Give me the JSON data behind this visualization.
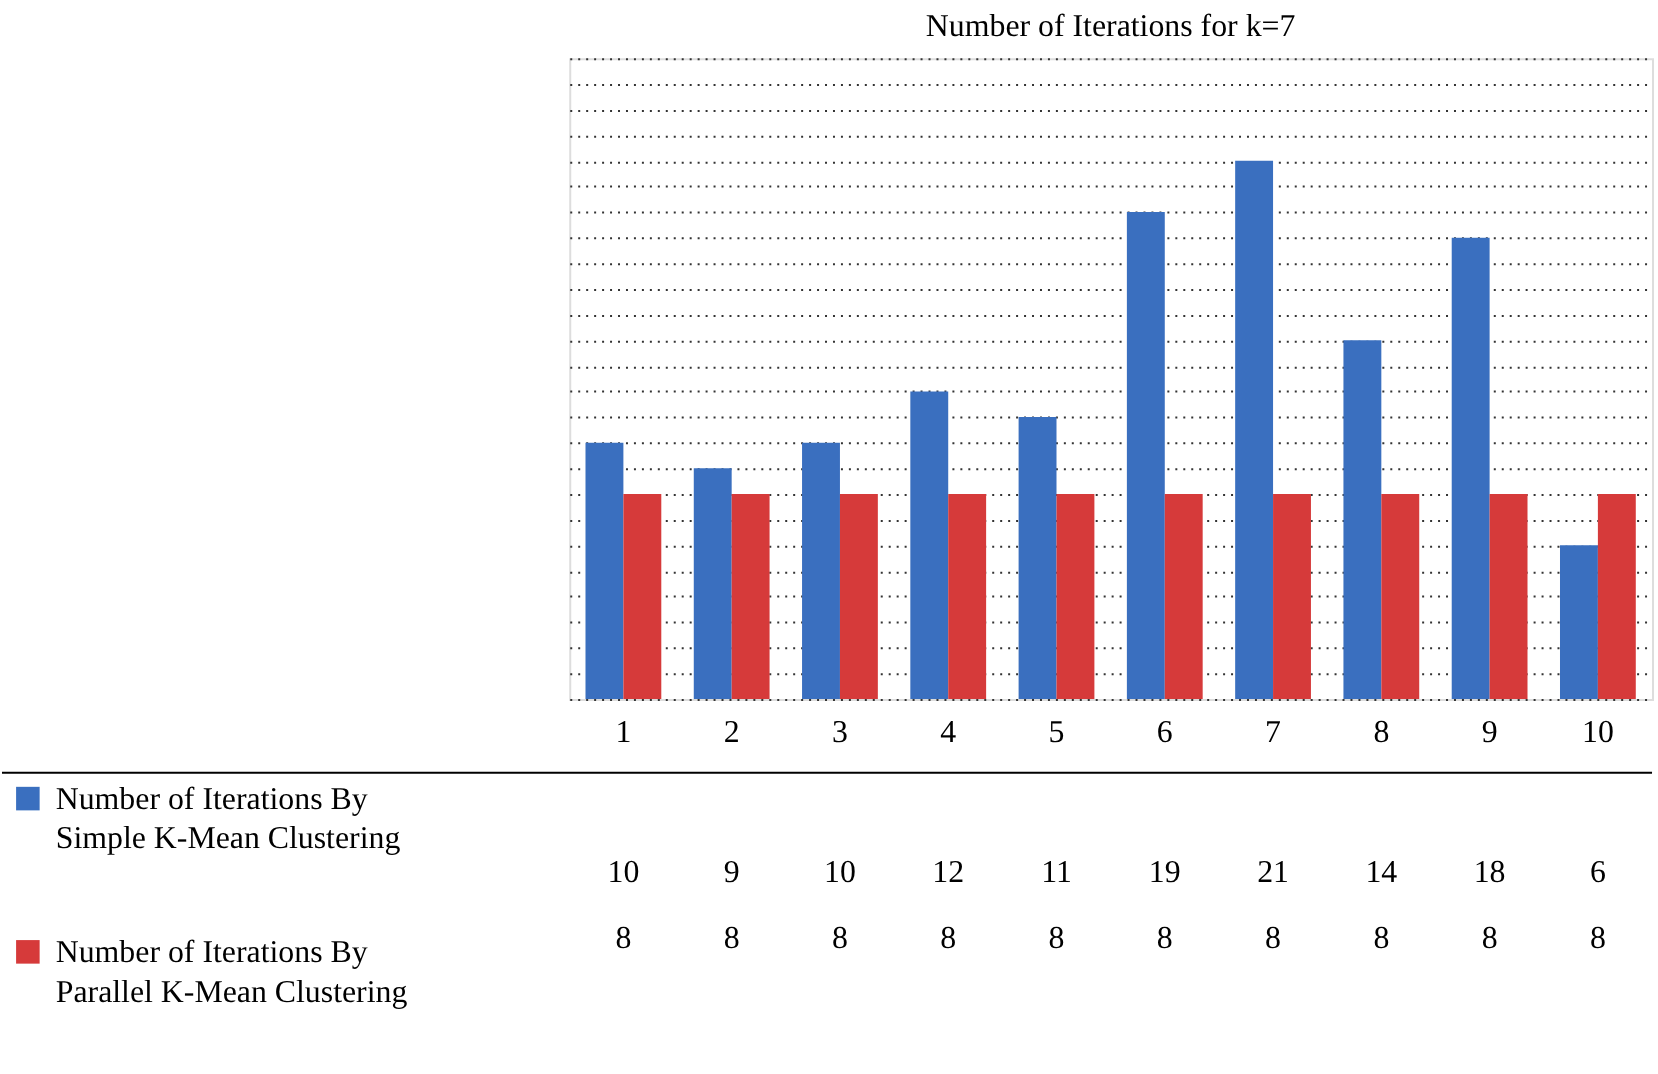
{
  "chart_data": {
    "type": "bar",
    "title": "Number of Iterations for k=7",
    "categories": [
      "1",
      "2",
      "3",
      "4",
      "5",
      "6",
      "7",
      "8",
      "9",
      "10"
    ],
    "series": [
      {
        "name": "Number of Iterations By Simple K-Mean Clustering",
        "color": "#3a6fbf",
        "values": [
          10,
          9,
          10,
          12,
          11,
          19,
          21,
          14,
          18,
          6
        ]
      },
      {
        "name": "Number of Iterations By Parallel K-Mean Clustering",
        "color": "#d63a3a",
        "values": [
          8,
          8,
          8,
          8,
          8,
          8,
          8,
          8,
          8,
          8
        ]
      }
    ],
    "ylim": [
      0,
      25
    ],
    "yticks": [
      {
        "value": 0,
        "label": null
      },
      {
        "value": 1,
        "label": null
      },
      {
        "value": 2,
        "label": null
      },
      {
        "value": 3,
        "label": null
      },
      {
        "value": 4,
        "label": null
      },
      {
        "value": 5,
        "label": null
      },
      {
        "value": 6,
        "label": null
      },
      {
        "value": 7,
        "label": null
      },
      {
        "value": 8,
        "label": null
      },
      {
        "value": 9,
        "label": null
      },
      {
        "value": 10,
        "label": null
      },
      {
        "value": 11,
        "label": null
      },
      {
        "value": 12,
        "label": null
      },
      {
        "value": 13,
        "label": null
      },
      {
        "value": 14,
        "label": null
      },
      {
        "value": 15,
        "label": null
      },
      {
        "value": 16,
        "label": null
      },
      {
        "value": 17,
        "label": null
      },
      {
        "value": 18,
        "label": null
      },
      {
        "value": 19,
        "label": null
      },
      {
        "value": 20,
        "label": null
      },
      {
        "value": 21,
        "label": null
      },
      {
        "value": 22,
        "label": null
      },
      {
        "value": 23,
        "label": null
      },
      {
        "value": 24,
        "label": null
      },
      {
        "value": 25,
        "label": null
      }
    ],
    "grid": "y",
    "tick_labels": "x",
    "data_labels": true,
    "legend": "bottom"
  }
}
